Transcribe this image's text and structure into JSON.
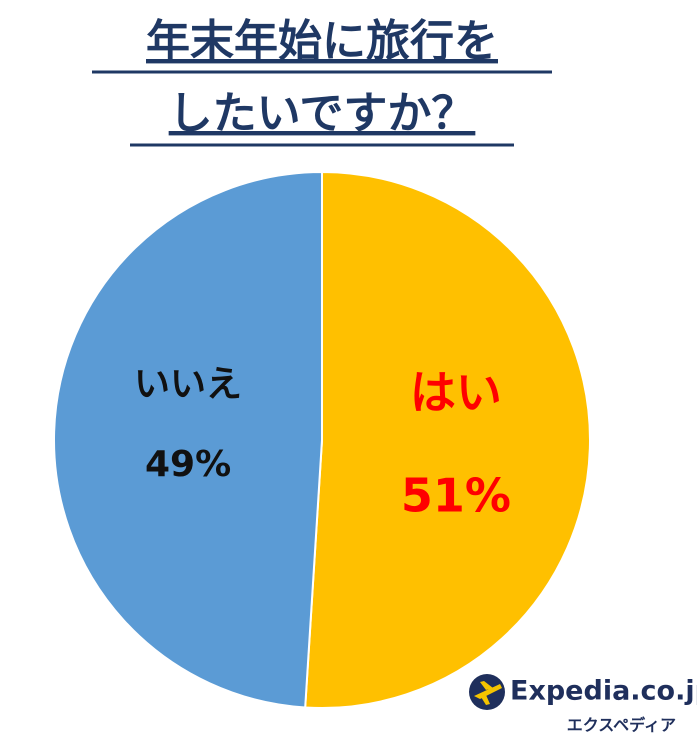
{
  "chart_data": {
    "type": "pie",
    "title": [
      "年末年始に旅行を",
      "したいですか？"
    ],
    "categories": [
      "はい",
      "いいえ"
    ],
    "values": [
      51,
      49
    ],
    "value_labels": [
      "51%",
      "49%"
    ],
    "colors": [
      "#ffc000",
      "#5b9bd5"
    ],
    "label_colors": [
      "#ff0000",
      "#111111"
    ],
    "logo": {
      "name": "Expedia.co.jp",
      "tagline": "エクスペディア"
    }
  }
}
